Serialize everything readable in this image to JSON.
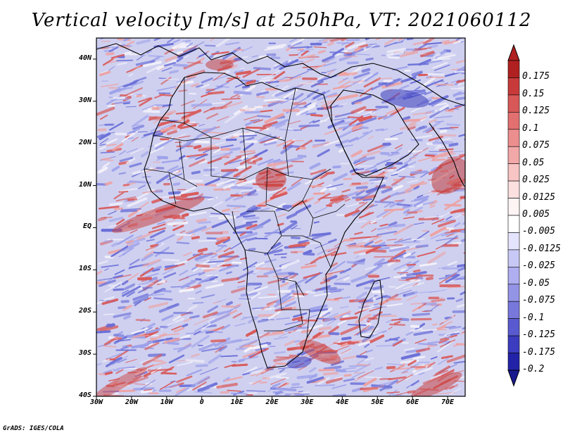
{
  "title": "Vertical velocity [m/s] at 250hPa, VT: 2021060112",
  "credit": "GrADS: IGES/COLA",
  "map": {
    "lon_range": [
      -30,
      75
    ],
    "lat_range": [
      -40,
      45
    ],
    "lat_ticks": [
      {
        "value": 40,
        "label": "40N"
      },
      {
        "value": 30,
        "label": "30N"
      },
      {
        "value": 20,
        "label": "20N"
      },
      {
        "value": 10,
        "label": "10N"
      },
      {
        "value": 0,
        "label": "EQ"
      },
      {
        "value": -10,
        "label": "10S"
      },
      {
        "value": -20,
        "label": "20S"
      },
      {
        "value": -30,
        "label": "30S"
      },
      {
        "value": -40,
        "label": "40S"
      }
    ],
    "lon_ticks": [
      {
        "value": -30,
        "label": "30W"
      },
      {
        "value": -20,
        "label": "20W"
      },
      {
        "value": -10,
        "label": "10W"
      },
      {
        "value": 0,
        "label": "0"
      },
      {
        "value": 10,
        "label": "10E"
      },
      {
        "value": 20,
        "label": "20E"
      },
      {
        "value": 30,
        "label": "30E"
      },
      {
        "value": 40,
        "label": "40E"
      },
      {
        "value": 50,
        "label": "50E"
      },
      {
        "value": 60,
        "label": "60E"
      },
      {
        "value": 70,
        "label": "70E"
      }
    ]
  },
  "colorbar": {
    "levels": [
      {
        "label": "0.175",
        "color": "#b02020"
      },
      {
        "label": "0.15",
        "color": "#c83a3a"
      },
      {
        "label": "0.125",
        "color": "#d85858"
      },
      {
        "label": "0.1",
        "color": "#e27070"
      },
      {
        "label": "0.075",
        "color": "#ec8e8e"
      },
      {
        "label": "0.05",
        "color": "#f2a8a8"
      },
      {
        "label": "0.025",
        "color": "#f8c4c4"
      },
      {
        "label": "0.0125",
        "color": "#fce0e0"
      },
      {
        "label": "0.005",
        "color": "#fff4f4"
      },
      {
        "label": "-0.005",
        "color": "#ffffff"
      },
      {
        "label": "-0.0125",
        "color": "#e4e4ff"
      },
      {
        "label": "-0.025",
        "color": "#c8c8f6"
      },
      {
        "label": "-0.05",
        "color": "#aeaef0"
      },
      {
        "label": "-0.075",
        "color": "#9494e6"
      },
      {
        "label": "-0.1",
        "color": "#7878dc"
      },
      {
        "label": "-0.125",
        "color": "#5a5ad0"
      },
      {
        "label": "-0.175",
        "color": "#3c3cc0"
      },
      {
        "label": "-0.2",
        "color": "#2222a8"
      }
    ],
    "top_cap_color": "#b02020",
    "bottom_cap_color": "#1a1a90"
  },
  "colors": {
    "neutral": "#d8d6ee",
    "blue": "#7b7fe0",
    "red": "#e58a8a",
    "coast": "#000000"
  }
}
